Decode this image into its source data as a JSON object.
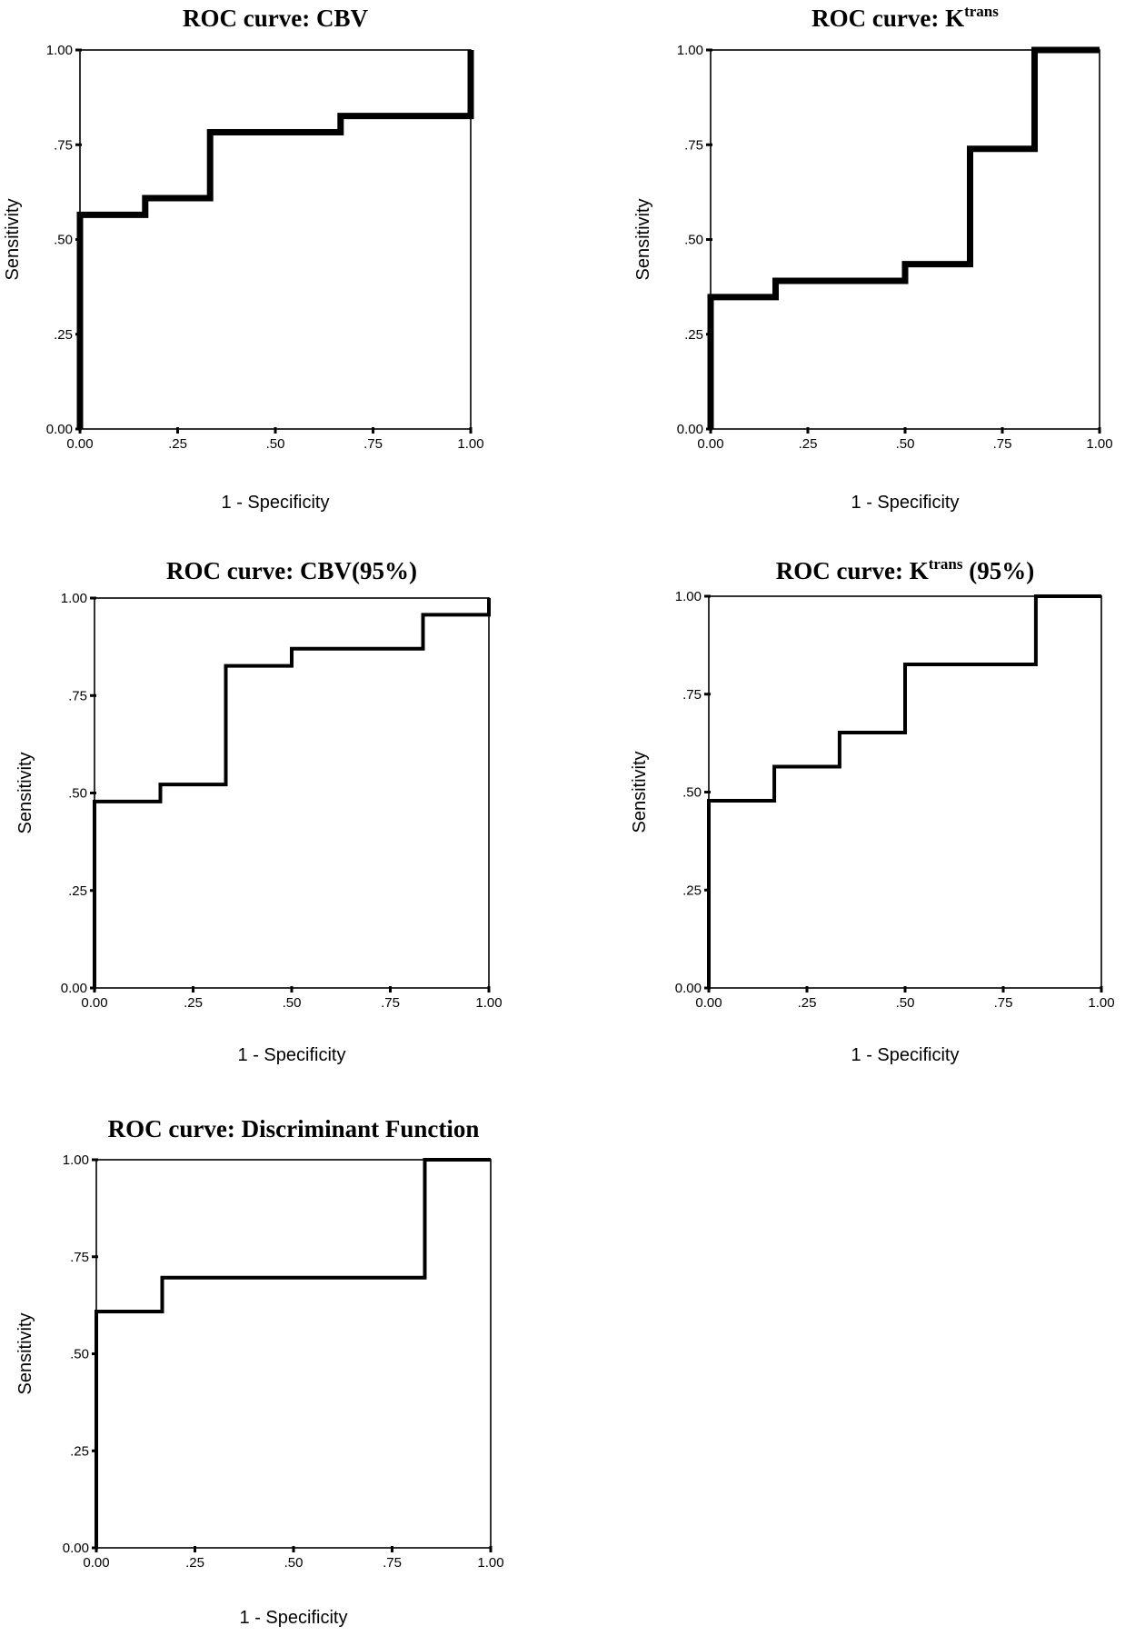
{
  "chart_data": [
    {
      "type": "line",
      "title": {
        "base": "ROC curve: CBV",
        "sup": "",
        "suffix": ""
      },
      "xlabel": "1 - Specificity",
      "ylabel": "Sensitivity",
      "xlim": [
        0,
        1
      ],
      "ylim": [
        0,
        1
      ],
      "xticks": [
        "0.00",
        ".25",
        ".50",
        ".75",
        "1.00"
      ],
      "yticks": [
        "0.00",
        ".25",
        ".50",
        ".75",
        "1.00"
      ],
      "grid": false,
      "line_style": "step",
      "series": [
        {
          "x": [
            0.0,
            0.0,
            0.167,
            0.167,
            0.333,
            0.333,
            0.667,
            0.667,
            1.0,
            1.0
          ],
          "y": [
            0.0,
            0.565,
            0.565,
            0.609,
            0.609,
            0.783,
            0.783,
            0.826,
            0.826,
            1.0
          ]
        }
      ]
    },
    {
      "type": "line",
      "title": {
        "base": "ROC curve: K",
        "sup": "trans",
        "suffix": ""
      },
      "xlabel": "1 - Specificity",
      "ylabel": "Sensitivity",
      "xlim": [
        0,
        1
      ],
      "ylim": [
        0,
        1
      ],
      "xticks": [
        "0.00",
        ".25",
        ".50",
        ".75",
        "1.00"
      ],
      "yticks": [
        "0.00",
        ".25",
        ".50",
        ".75",
        "1.00"
      ],
      "grid": false,
      "line_style": "step",
      "series": [
        {
          "x": [
            0.0,
            0.0,
            0.167,
            0.167,
            0.5,
            0.5,
            0.667,
            0.667,
            0.833,
            0.833,
            1.0
          ],
          "y": [
            0.0,
            0.348,
            0.348,
            0.391,
            0.391,
            0.435,
            0.435,
            0.739,
            0.739,
            1.0,
            1.0
          ]
        }
      ]
    },
    {
      "type": "line",
      "title": {
        "base": "ROC curve: CBV(95%)",
        "sup": "",
        "suffix": ""
      },
      "xlabel": "1 - Specificity",
      "ylabel": "Sensitivity",
      "xlim": [
        0,
        1
      ],
      "ylim": [
        0,
        1
      ],
      "xticks": [
        "0.00",
        ".25",
        ".50",
        ".75",
        "1.00"
      ],
      "yticks": [
        "0.00",
        ".25",
        ".50",
        ".75",
        "1.00"
      ],
      "grid": false,
      "line_style": "step",
      "series": [
        {
          "x": [
            0.0,
            0.0,
            0.167,
            0.167,
            0.333,
            0.333,
            0.5,
            0.5,
            0.833,
            0.833,
            1.0,
            1.0
          ],
          "y": [
            0.0,
            0.478,
            0.478,
            0.522,
            0.522,
            0.826,
            0.826,
            0.87,
            0.87,
            0.957,
            0.957,
            1.0
          ]
        }
      ]
    },
    {
      "type": "line",
      "title": {
        "base": "ROC curve: K",
        "sup": "trans",
        "suffix": " (95%)"
      },
      "xlabel": "1 - Specificity",
      "ylabel": "Sensitivity",
      "xlim": [
        0,
        1
      ],
      "ylim": [
        0,
        1
      ],
      "xticks": [
        "0.00",
        ".25",
        ".50",
        ".75",
        "1.00"
      ],
      "yticks": [
        "0.00",
        ".25",
        ".50",
        ".75",
        "1.00"
      ],
      "grid": false,
      "line_style": "step",
      "series": [
        {
          "x": [
            0.0,
            0.0,
            0.167,
            0.167,
            0.333,
            0.333,
            0.5,
            0.5,
            0.833,
            0.833,
            1.0
          ],
          "y": [
            0.0,
            0.478,
            0.478,
            0.565,
            0.565,
            0.652,
            0.652,
            0.826,
            0.826,
            1.0,
            1.0
          ]
        }
      ]
    },
    {
      "type": "line",
      "title": {
        "base": "ROC curve: Discriminant Function",
        "sup": "",
        "suffix": ""
      },
      "xlabel": "1 - Specificity",
      "ylabel": "Sensitivity",
      "xlim": [
        0,
        1
      ],
      "ylim": [
        0,
        1
      ],
      "xticks": [
        "0.00",
        ".25",
        ".50",
        ".75",
        "1.00"
      ],
      "yticks": [
        "0.00",
        ".25",
        ".50",
        ".75",
        "1.00"
      ],
      "grid": false,
      "line_style": "step",
      "series": [
        {
          "x": [
            0.0,
            0.0,
            0.167,
            0.167,
            0.833,
            0.833,
            1.0
          ],
          "y": [
            0.0,
            0.609,
            0.609,
            0.696,
            0.696,
            1.0,
            1.0
          ]
        }
      ]
    }
  ]
}
